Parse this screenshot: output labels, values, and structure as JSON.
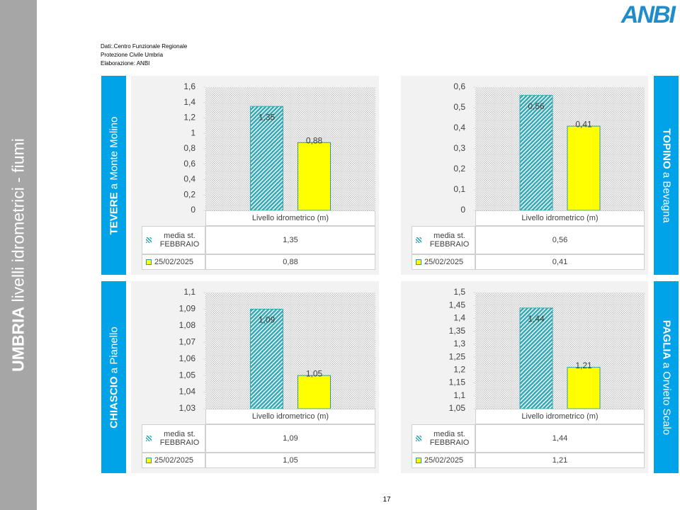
{
  "header": {
    "region": "UMBRIA",
    "topic": "livelli idrometrici - fiumi",
    "logo": "ANBI",
    "source": [
      "Dati:.Centro Funzionale Regionale",
      "Protezione Civile Umbria",
      "Elaborazione: ANBI"
    ]
  },
  "page_number": "17",
  "chart_data": [
    {
      "type": "bar",
      "river": "TEVERE",
      "station": "a Monte Molino",
      "label_side": "left",
      "categories": [
        "Livello idrometrico (m)"
      ],
      "series": [
        {
          "name": "media st. FEBBRAIO",
          "color": "#35a9b5",
          "pattern": "diagonal-hatch",
          "values": [
            1.35
          ],
          "value_labels": [
            "1,35"
          ]
        },
        {
          "name": "25/02/2025",
          "color": "#ffff00",
          "values": [
            0.88
          ],
          "value_labels": [
            "0,88"
          ]
        }
      ],
      "ylim": [
        0,
        1.6
      ],
      "yticks": [
        0,
        {
          "value": 0.2,
          "label": "0,2"
        },
        {
          "value": 0.4,
          "label": "0,4"
        },
        {
          "value": 0.6,
          "label": "0,6"
        },
        {
          "value": 0.8,
          "label": "0,8"
        },
        1,
        {
          "value": 1.2,
          "label": "1,2"
        },
        {
          "value": 1.4,
          "label": "1,4"
        },
        {
          "value": 1.6,
          "label": "1,6"
        }
      ]
    },
    {
      "type": "bar",
      "river": "TOPINO",
      "station": "a Bevagna",
      "label_side": "right",
      "categories": [
        "Livello idrometrico (m)"
      ],
      "series": [
        {
          "name": "media st. FEBBRAIO",
          "color": "#35a9b5",
          "pattern": "diagonal-hatch",
          "values": [
            0.56
          ],
          "value_labels": [
            "0,56"
          ]
        },
        {
          "name": "25/02/2025",
          "color": "#ffff00",
          "values": [
            0.41
          ],
          "value_labels": [
            "0,41"
          ]
        }
      ],
      "ylim": [
        0,
        0.6
      ],
      "yticks": [
        0,
        {
          "value": 0.1,
          "label": "0,1"
        },
        {
          "value": 0.2,
          "label": "0,2"
        },
        {
          "value": 0.3,
          "label": "0,3"
        },
        {
          "value": 0.4,
          "label": "0,4"
        },
        {
          "value": 0.5,
          "label": "0,5"
        },
        {
          "value": 0.6,
          "label": "0,6"
        }
      ]
    },
    {
      "type": "bar",
      "river": "CHIASCIO",
      "station": "a Pianello",
      "label_side": "left",
      "categories": [
        "Livello idrometrico (m)"
      ],
      "series": [
        {
          "name": "media st. FEBBRAIO",
          "color": "#35a9b5",
          "pattern": "diagonal-hatch",
          "values": [
            1.09
          ],
          "value_labels": [
            "1,09"
          ]
        },
        {
          "name": "25/02/2025",
          "color": "#ffff00",
          "values": [
            1.05
          ],
          "value_labels": [
            "1,05"
          ]
        }
      ],
      "ylim": [
        1.03,
        1.1
      ],
      "yticks": [
        {
          "value": 1.03,
          "label": "1,03"
        },
        {
          "value": 1.04,
          "label": "1,04"
        },
        {
          "value": 1.05,
          "label": "1,05"
        },
        {
          "value": 1.06,
          "label": "1,06"
        },
        {
          "value": 1.07,
          "label": "1,07"
        },
        {
          "value": 1.08,
          "label": "1,08"
        },
        {
          "value": 1.09,
          "label": "1,09"
        },
        {
          "value": 1.1,
          "label": "1,1"
        }
      ]
    },
    {
      "type": "bar",
      "river": "PAGLIA",
      "station": "a Orvieto Scalo",
      "label_side": "right",
      "categories": [
        "Livello idrometrico (m)"
      ],
      "series": [
        {
          "name": "media st. FEBBRAIO",
          "color": "#35a9b5",
          "pattern": "diagonal-hatch",
          "values": [
            1.44
          ],
          "value_labels": [
            "1,44"
          ]
        },
        {
          "name": "25/02/2025",
          "color": "#ffff00",
          "values": [
            1.21
          ],
          "value_labels": [
            "1,21"
          ]
        }
      ],
      "ylim": [
        1.05,
        1.5
      ],
      "yticks": [
        {
          "value": 1.05,
          "label": "1,05"
        },
        {
          "value": 1.1,
          "label": "1,1"
        },
        {
          "value": 1.15,
          "label": "1,15"
        },
        {
          "value": 1.2,
          "label": "1,2"
        },
        {
          "value": 1.25,
          "label": "1,25"
        },
        {
          "value": 1.3,
          "label": "1,3"
        },
        {
          "value": 1.35,
          "label": "1,35"
        },
        {
          "value": 1.4,
          "label": "1,4"
        },
        {
          "value": 1.45,
          "label": "1,45"
        },
        {
          "value": 1.5,
          "label": "1,5"
        }
      ]
    }
  ]
}
